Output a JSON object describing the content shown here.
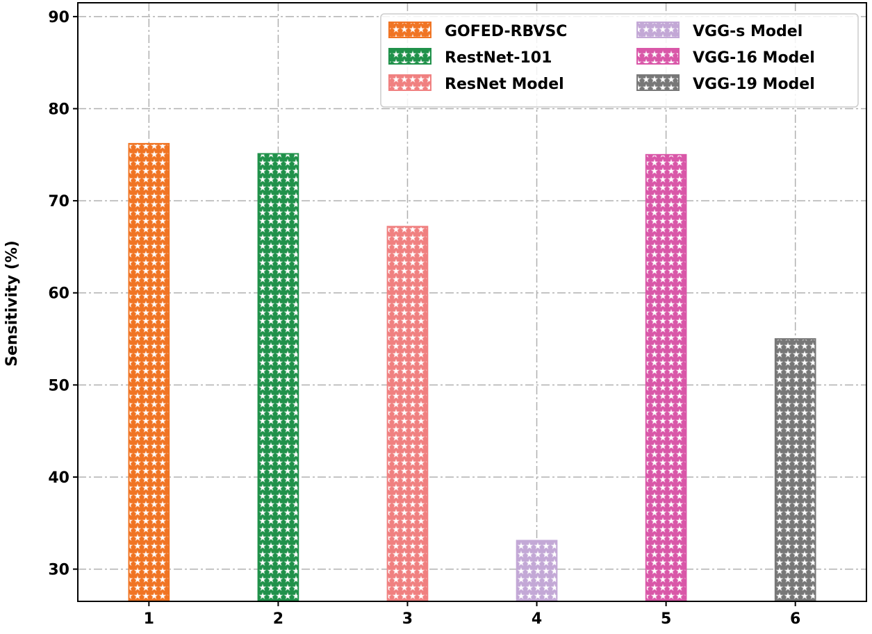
{
  "chart_data": {
    "type": "bar",
    "title": "",
    "xlabel": "",
    "ylabel": "Sensitivity (%)",
    "ylim": [
      26.5,
      91.5
    ],
    "yticks": [
      30,
      40,
      50,
      60,
      70,
      80,
      90
    ],
    "grid": true,
    "legend_position": "top-right",
    "categories": [
      "1",
      "2",
      "3",
      "4",
      "5",
      "6"
    ],
    "series": [
      {
        "name": "GOFED-RBVSC",
        "color": "#f07423",
        "values": [
          76.2,
          null,
          null,
          null,
          null,
          null
        ]
      },
      {
        "name": "RestNet-101",
        "color": "#20914a",
        "values": [
          null,
          75.1,
          null,
          null,
          null,
          null
        ]
      },
      {
        "name": "ResNet Model",
        "color": "#f08080",
        "values": [
          null,
          null,
          67.2,
          null,
          null,
          null
        ]
      },
      {
        "name": "VGG-s Model",
        "color": "#c3a8d6",
        "values": [
          null,
          null,
          null,
          33.1,
          null,
          null
        ]
      },
      {
        "name": "VGG-16 Model",
        "color": "#d957a8",
        "values": [
          null,
          null,
          null,
          null,
          75.0,
          null
        ]
      },
      {
        "name": "VGG-19 Model",
        "color": "#777777",
        "values": [
          null,
          null,
          null,
          null,
          null,
          55.0
        ]
      }
    ]
  }
}
